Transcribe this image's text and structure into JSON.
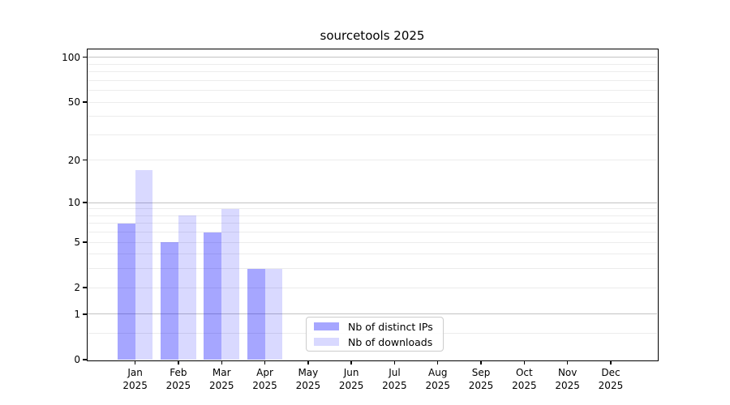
{
  "chart_data": {
    "type": "bar",
    "title": "sourcetools 2025",
    "xlabel": "",
    "ylabel": "",
    "x": {
      "months": [
        "Jan",
        "Feb",
        "Mar",
        "Apr",
        "May",
        "Jun",
        "Jul",
        "Aug",
        "Sep",
        "Oct",
        "Nov",
        "Dec"
      ],
      "year": "2025"
    },
    "categories": [
      "Jan 2025",
      "Feb 2025",
      "Mar 2025",
      "Apr 2025",
      "May 2025",
      "Jun 2025",
      "Jul 2025",
      "Aug 2025",
      "Sep 2025",
      "Oct 2025",
      "Nov 2025",
      "Dec 2025"
    ],
    "series": [
      {
        "name": "Nb of distinct IPs",
        "color": "#a6a6ff",
        "fill": "rgba(0,0,255,0.35)",
        "values": [
          7,
          5,
          6,
          3,
          0,
          0,
          0,
          0,
          0,
          0,
          0,
          0
        ]
      },
      {
        "name": "Nb of downloads",
        "color": "#d9d9ff",
        "fill": "rgba(0,0,255,0.15)",
        "values": [
          17,
          8,
          9,
          3,
          0,
          0,
          0,
          0,
          0,
          0,
          0,
          0
        ]
      }
    ],
    "yaxis": {
      "scale": "log1p",
      "ylim": [
        0,
        113
      ],
      "ticks": [
        0,
        1,
        2,
        5,
        10,
        20,
        50,
        100
      ],
      "tick_labels": [
        "0",
        "1",
        "2",
        "5",
        "10",
        "20",
        "50",
        "100"
      ],
      "major_gridlines": [
        1,
        10,
        100
      ],
      "minor_gridlines": [
        0.5,
        2,
        3,
        4,
        5,
        6,
        7,
        8,
        9,
        20,
        30,
        40,
        50,
        60,
        70,
        80,
        90
      ]
    },
    "grid": true,
    "legend": {
      "position": "inside lower center",
      "frame": true
    }
  }
}
